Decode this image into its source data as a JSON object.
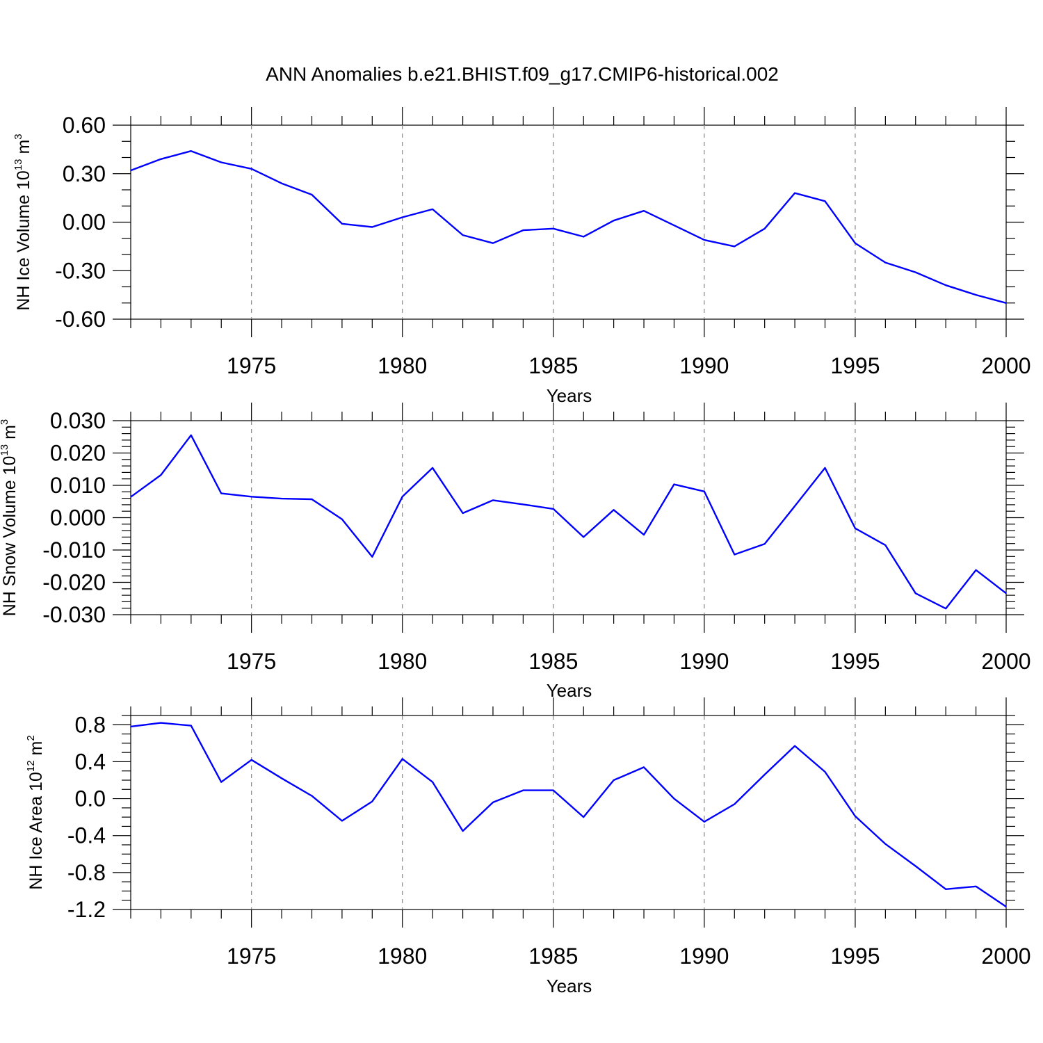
{
  "title": "ANN Anomalies b.e21.BHIST.f09_g17.CMIP6-historical.002",
  "colors": {
    "line": "#0000ff",
    "axis": "#000000",
    "grid": "#888888"
  },
  "chart_data": [
    {
      "type": "line",
      "ylabel": "NH Ice Volume 10",
      "ylabel_sup": "13",
      "ylabel_unit": " m",
      "ylabel_unit_sup": "3",
      "xlabel": "Years",
      "xlim": [
        1971,
        2000
      ],
      "ylim": [
        -0.6,
        0.6
      ],
      "xticks": [
        1975,
        1980,
        1985,
        1990,
        1995,
        2000
      ],
      "xtick_labels": [
        "1975",
        "1980",
        "1985",
        "1990",
        "1995",
        "2000"
      ],
      "yticks": [
        -0.6,
        -0.3,
        0.0,
        0.3,
        0.6
      ],
      "ytick_labels": [
        "-0.60",
        "-0.30",
        "0.00",
        "0.30",
        "0.60"
      ],
      "y_minor_step": 0.1,
      "grid_x": true,
      "x": [
        1971,
        1972,
        1973,
        1974,
        1975,
        1976,
        1977,
        1978,
        1979,
        1980,
        1981,
        1982,
        1983,
        1984,
        1985,
        1986,
        1987,
        1988,
        1989,
        1990,
        1991,
        1992,
        1993,
        1994,
        1995,
        1996,
        1997,
        1998,
        1999,
        2000
      ],
      "series": [
        {
          "values": [
            0.32,
            0.39,
            0.44,
            0.37,
            0.33,
            0.24,
            0.17,
            -0.01,
            -0.03,
            0.03,
            0.08,
            -0.08,
            -0.13,
            -0.05,
            -0.04,
            -0.09,
            0.01,
            0.07,
            -0.02,
            -0.11,
            -0.15,
            -0.04,
            0.18,
            0.13,
            -0.13,
            -0.25,
            -0.31,
            -0.39,
            -0.45,
            -0.5
          ]
        }
      ]
    },
    {
      "type": "line",
      "ylabel": "NH Snow Volume 10",
      "ylabel_sup": "13",
      "ylabel_unit": " m",
      "ylabel_unit_sup": "3",
      "xlabel": "Years",
      "xlim": [
        1971,
        2000
      ],
      "ylim": [
        -0.03,
        0.03
      ],
      "xticks": [
        1975,
        1980,
        1985,
        1990,
        1995,
        2000
      ],
      "xtick_labels": [
        "1975",
        "1980",
        "1985",
        "1990",
        "1995",
        "2000"
      ],
      "yticks": [
        -0.03,
        -0.02,
        -0.01,
        0.0,
        0.01,
        0.02,
        0.03
      ],
      "ytick_labels": [
        "-0.030",
        "-0.020",
        "-0.010",
        "0.000",
        "0.010",
        "0.020",
        "0.030"
      ],
      "y_minor_step": 0.002,
      "grid_x": true,
      "x": [
        1971,
        1972,
        1973,
        1974,
        1975,
        1976,
        1977,
        1978,
        1979,
        1980,
        1981,
        1982,
        1983,
        1984,
        1985,
        1986,
        1987,
        1988,
        1989,
        1990,
        1991,
        1992,
        1993,
        1994,
        1995,
        1996,
        1997,
        1998,
        1999,
        2000
      ],
      "series": [
        {
          "values": [
            0.0064,
            0.0132,
            0.0255,
            0.0075,
            0.0065,
            0.0059,
            0.0057,
            -0.0005,
            -0.0121,
            0.0065,
            0.0154,
            0.0014,
            0.0054,
            0.0041,
            0.0027,
            -0.006,
            0.0024,
            -0.0053,
            0.0103,
            0.0081,
            -0.0114,
            -0.0081,
            0.0036,
            0.0154,
            -0.0033,
            -0.0085,
            -0.0234,
            -0.0281,
            -0.0162,
            -0.0234
          ]
        }
      ]
    },
    {
      "type": "line",
      "ylabel": "NH Ice Area 10",
      "ylabel_sup": "12",
      "ylabel_unit": " m",
      "ylabel_unit_sup": "2",
      "xlabel": "Years",
      "xlim": [
        1971,
        2000
      ],
      "ylim": [
        -1.2,
        0.9
      ],
      "xticks": [
        1975,
        1980,
        1985,
        1990,
        1995,
        2000
      ],
      "xtick_labels": [
        "1975",
        "1980",
        "1985",
        "1990",
        "1995",
        "2000"
      ],
      "yticks": [
        -1.2,
        -0.8,
        -0.4,
        0.0,
        0.4,
        0.8
      ],
      "ytick_labels": [
        "-1.2",
        "-0.8",
        "-0.4",
        "0.0",
        "0.4",
        "0.8"
      ],
      "y_minor_step": 0.1,
      "grid_x": true,
      "x": [
        1971,
        1972,
        1973,
        1974,
        1975,
        1976,
        1977,
        1978,
        1979,
        1980,
        1981,
        1982,
        1983,
        1984,
        1985,
        1986,
        1987,
        1988,
        1989,
        1990,
        1991,
        1992,
        1993,
        1994,
        1995,
        1996,
        1997,
        1998,
        1999,
        2000
      ],
      "series": [
        {
          "values": [
            0.78,
            0.82,
            0.79,
            0.18,
            0.42,
            0.22,
            0.03,
            -0.24,
            -0.03,
            0.43,
            0.18,
            -0.35,
            -0.04,
            0.09,
            0.09,
            -0.2,
            0.2,
            0.34,
            0.0,
            -0.25,
            -0.06,
            0.26,
            0.57,
            0.29,
            -0.19,
            -0.49,
            -0.73,
            -0.98,
            -0.95,
            -1.17
          ]
        }
      ]
    }
  ]
}
